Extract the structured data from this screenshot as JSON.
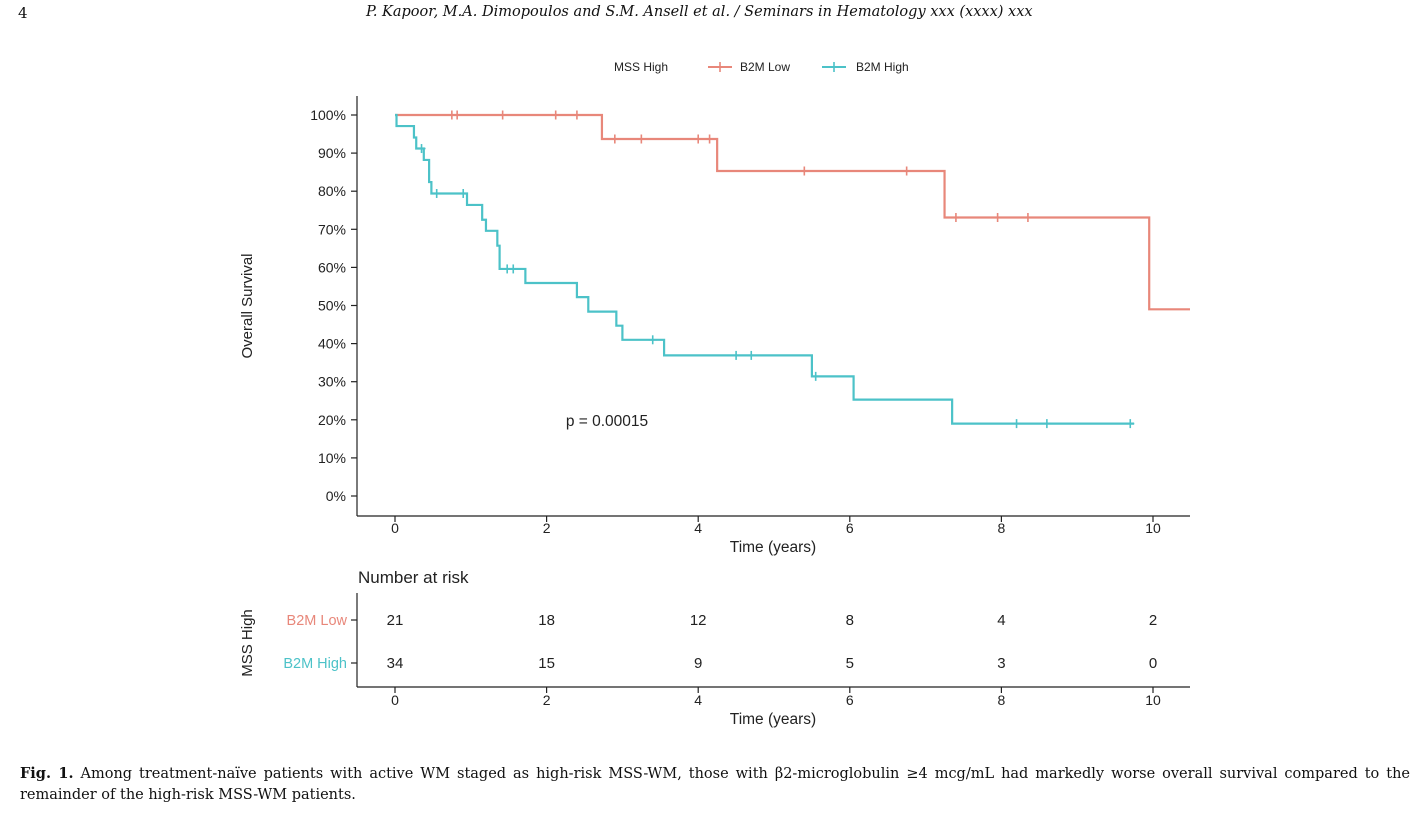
{
  "page": {
    "page_number": "4",
    "running_header": "P. Kapoor, M.A. Dimopoulos and S.M. Ansell et al. / Seminars in Hematology xxx (xxxx) xxx"
  },
  "legend": {
    "title": "MSS High",
    "entries": [
      "B2M Low",
      "B2M High"
    ]
  },
  "colors": {
    "b2m_low": "#e8877a",
    "b2m_high": "#4cc2c8",
    "axis": "#222222"
  },
  "p_value_text": "p = 0.00015",
  "chart_data": [
    {
      "type": "line",
      "subtype": "kaplan-meier",
      "title": "",
      "xlabel": "Time (years)",
      "ylabel": "Overall Survival",
      "xlim": [
        -0.5,
        10.5
      ],
      "ylim": [
        -0.05,
        1.05
      ],
      "xticks": [
        0,
        2,
        4,
        6,
        8,
        10
      ],
      "xtick_labels": [
        "0",
        "2",
        "4",
        "6",
        "8",
        "10"
      ],
      "yticks": [
        0,
        0.1,
        0.2,
        0.3,
        0.4,
        0.5,
        0.6,
        0.7,
        0.8,
        0.9,
        1.0
      ],
      "ytick_labels": [
        "0%",
        "10%",
        "20%",
        "30%",
        "40%",
        "50%",
        "60%",
        "70%",
        "80%",
        "90%",
        "100%"
      ],
      "legend_position": "top",
      "grid": false,
      "series": [
        {
          "name": "B2M Low",
          "color": "#e8877a",
          "steps": [
            [
              0,
              1.0
            ],
            [
              2.73,
              0.937
            ],
            [
              4.25,
              0.853
            ],
            [
              7.25,
              0.731
            ],
            [
              9.95,
              0.49
            ],
            [
              10.5,
              0.49
            ]
          ],
          "censor_times": [
            0.75,
            0.82,
            1.42,
            2.12,
            2.4,
            2.9,
            3.25,
            4.0,
            4.15,
            5.4,
            6.75,
            7.4,
            7.95,
            8.35
          ]
        },
        {
          "name": "B2M High",
          "color": "#4cc2c8",
          "steps": [
            [
              0,
              1.0
            ],
            [
              0.02,
              0.971
            ],
            [
              0.25,
              0.941
            ],
            [
              0.28,
              0.912
            ],
            [
              0.38,
              0.882
            ],
            [
              0.45,
              0.824
            ],
            [
              0.48,
              0.794
            ],
            [
              0.95,
              0.764
            ],
            [
              1.15,
              0.725
            ],
            [
              1.2,
              0.696
            ],
            [
              1.35,
              0.657
            ],
            [
              1.38,
              0.596
            ],
            [
              1.72,
              0.559
            ],
            [
              2.4,
              0.522
            ],
            [
              2.55,
              0.484
            ],
            [
              2.92,
              0.447
            ],
            [
              3.0,
              0.41
            ],
            [
              3.55,
              0.369
            ],
            [
              5.5,
              0.314
            ],
            [
              6.05,
              0.253
            ],
            [
              7.35,
              0.19
            ],
            [
              9.75,
              0.19
            ]
          ],
          "censor_times": [
            0.35,
            0.55,
            0.9,
            1.48,
            1.56,
            3.4,
            4.5,
            4.7,
            5.55,
            8.2,
            8.6,
            9.7
          ]
        }
      ]
    },
    {
      "type": "table",
      "title": "Number at risk",
      "xlabel": "Time (years)",
      "ylabel": "MSS High",
      "xticks": [
        0,
        2,
        4,
        6,
        8,
        10
      ],
      "xtick_labels": [
        "0",
        "2",
        "4",
        "6",
        "8",
        "10"
      ],
      "rows": [
        {
          "name": "B2M Low",
          "color": "#e8877a",
          "values": [
            "21",
            "18",
            "12",
            "8",
            "4",
            "2"
          ]
        },
        {
          "name": "B2M High",
          "color": "#4cc2c8",
          "values": [
            "34",
            "15",
            "9",
            "5",
            "3",
            "0"
          ]
        }
      ]
    }
  ],
  "caption": {
    "label": "Fig. 1.",
    "text": "Among treatment-naïve patients with active WM staged as high-risk MSS-WM, those with β2-microglobulin ≥4 mcg/mL had markedly worse overall survival compared to the remainder of the high-risk MSS-WM patients."
  }
}
